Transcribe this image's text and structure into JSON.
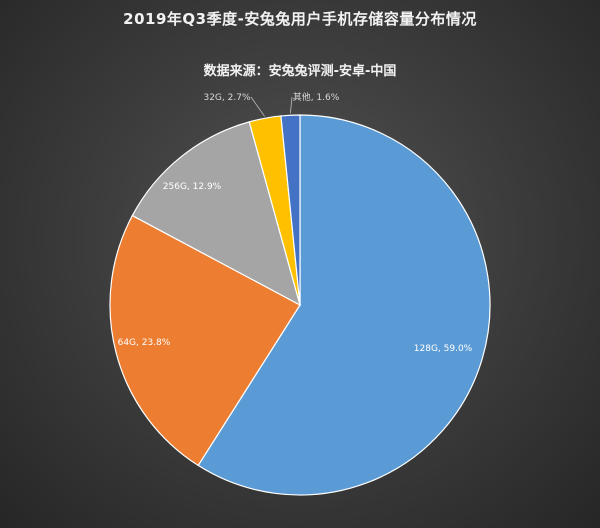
{
  "chart_data": {
    "type": "pie",
    "title": "2019年Q3季度-安兔兔用户手机存储容量分布情况",
    "subtitle": "数据来源：安兔兔评测-安卓-中国",
    "slices": [
      {
        "label": "128G",
        "value": 59.0,
        "text": "128G, 59.0%",
        "color": "#5b9bd5"
      },
      {
        "label": "64G",
        "value": 23.8,
        "text": "64G, 23.8%",
        "color": "#ed7d31"
      },
      {
        "label": "256G",
        "value": 12.9,
        "text": "256G, 12.9%",
        "color": "#a5a5a5"
      },
      {
        "label": "32G",
        "value": 2.7,
        "text": "32G, 2.7%",
        "color": "#ffc000"
      },
      {
        "label": "其他",
        "value": 1.6,
        "text": "其他, 1.6%",
        "color": "#4472c4"
      }
    ],
    "start": "12 o'clock",
    "direction": "clockwise",
    "legend": "none"
  }
}
